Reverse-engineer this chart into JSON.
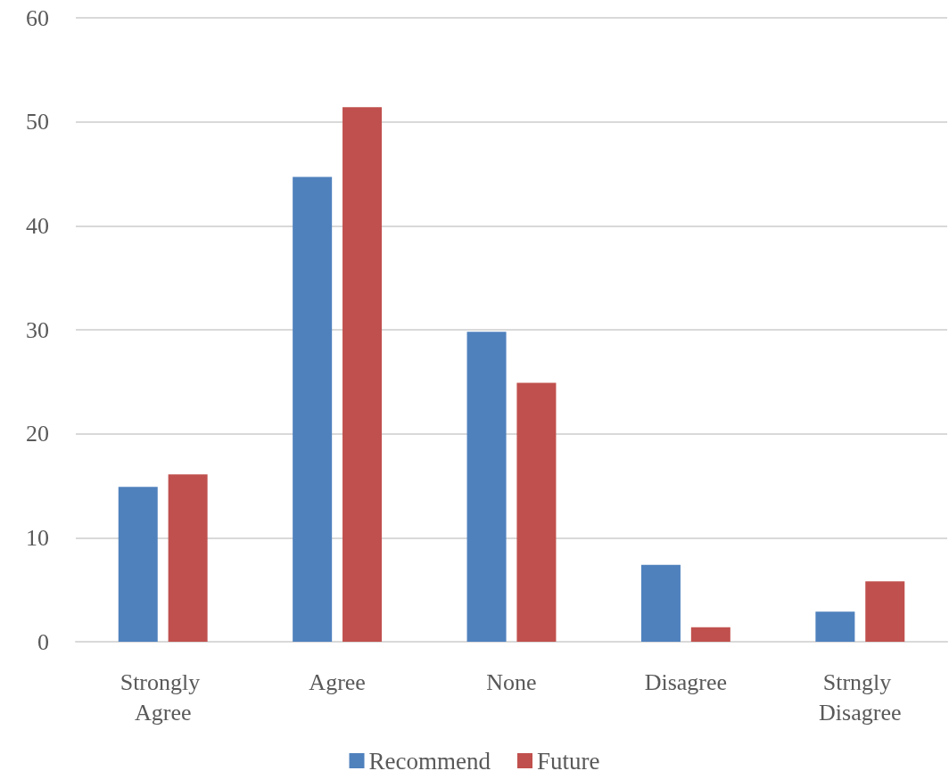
{
  "chart_data": {
    "type": "bar",
    "categories": [
      "Strongly Agree",
      "Agree",
      "None",
      "Disagree",
      "Strngly Disagree"
    ],
    "series": [
      {
        "name": "Recommend",
        "color": "#4f81bd",
        "values": [
          14.9,
          44.7,
          29.8,
          7.4,
          2.9
        ]
      },
      {
        "name": "Future",
        "color": "#c0504d",
        "values": [
          16.1,
          51.4,
          24.9,
          1.4,
          5.8
        ]
      }
    ],
    "ylim": [
      0,
      60
    ],
    "yticks": [
      0,
      10,
      20,
      30,
      40,
      50,
      60
    ],
    "grid": "y",
    "legend": "bottom"
  }
}
